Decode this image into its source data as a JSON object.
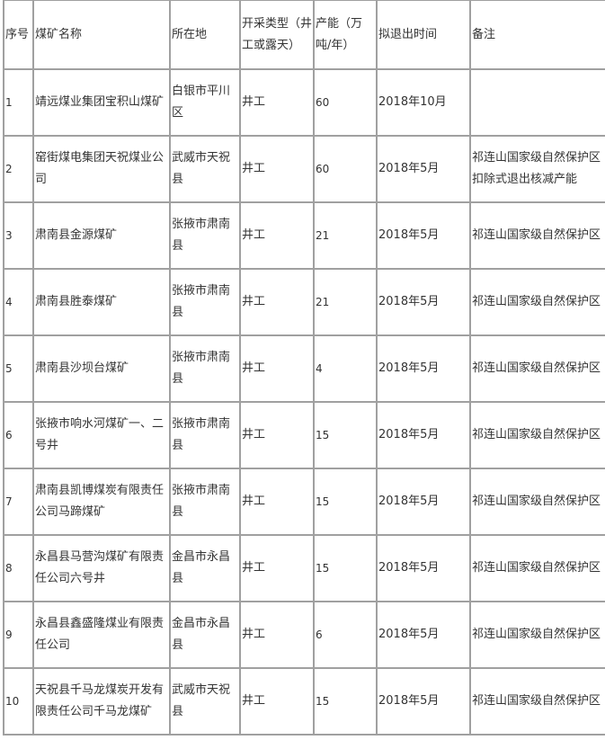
{
  "table": {
    "headers": [
      "序号",
      "煤矿名称",
      "所在地",
      "开采类型（井工或露天）",
      "产能（万吨/年）",
      "拟退出时间",
      "备注"
    ],
    "rows": [
      [
        "1",
        "靖远煤业集团宝积山煤矿",
        "白银市平川区",
        "井工",
        "60",
        "2018年10月",
        ""
      ],
      [
        "2",
        "窑街煤电集团天祝煤业公司",
        "武威市天祝县",
        "井工",
        "60",
        "2018年5月",
        "祁连山国家级自然保护区扣除式退出核减产能"
      ],
      [
        "3",
        "肃南县金源煤矿",
        "张掖市肃南县",
        "井工",
        "21",
        "2018年5月",
        "祁连山国家级自然保护区"
      ],
      [
        "4",
        "肃南县胜泰煤矿",
        "张掖市肃南县",
        "井工",
        "21",
        "2018年5月",
        "祁连山国家级自然保护区"
      ],
      [
        "5",
        "肃南县沙坝台煤矿",
        "张掖市肃南县",
        "井工",
        "4",
        "2018年5月",
        "祁连山国家级自然保护区"
      ],
      [
        "6",
        "张掖市响水河煤矿一、二号井",
        "张掖市肃南县",
        "井工",
        "15",
        "2018年5月",
        "祁连山国家级自然保护区"
      ],
      [
        "7",
        "肃南县凯博煤炭有限责任公司马蹄煤矿",
        "张掖市肃南县",
        "井工",
        "15",
        "2018年5月",
        "祁连山国家级自然保护区"
      ],
      [
        "8",
        "永昌县马营沟煤矿有限责任公司六号井",
        "金昌市永昌县",
        "井工",
        "15",
        "2018年5月",
        "祁连山国家级自然保护区"
      ],
      [
        "9",
        "永昌县鑫盛隆煤业有限责任公司",
        "金昌市永昌县",
        "井工",
        "6",
        "2018年5月",
        "祁连山国家级自然保护区"
      ],
      [
        "10",
        "天祝县千马龙煤炭开发有限责任公司千马龙煤矿",
        "武威市天祝县",
        "井工",
        "15",
        "2018年5月",
        "祁连山国家级自然保护区"
      ]
    ]
  }
}
